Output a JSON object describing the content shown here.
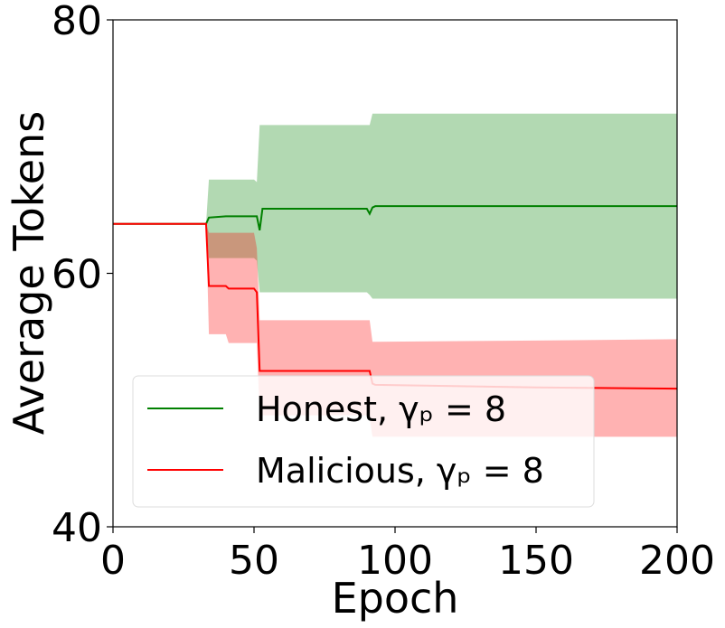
{
  "chart_data": {
    "type": "line",
    "xlabel": "Epoch",
    "ylabel": "Average Tokens",
    "x": [
      0,
      33,
      34,
      40,
      41,
      50,
      51,
      52,
      53,
      90,
      91,
      92,
      93,
      150,
      200
    ],
    "series": [
      {
        "name": "Honest, γₚ = 8",
        "color": "#008000",
        "values": [
          63.9,
          63.9,
          64.4,
          64.5,
          64.5,
          64.5,
          64.5,
          63.4,
          65.1,
          65.1,
          64.7,
          65.2,
          65.3,
          65.3,
          65.3
        ],
        "upper": [
          63.9,
          63.9,
          67.4,
          67.4,
          67.4,
          67.4,
          67.2,
          71.7,
          71.7,
          71.7,
          71.7,
          72.6,
          72.6,
          72.6,
          72.6
        ],
        "lower": [
          63.9,
          63.9,
          61.2,
          61.2,
          61.2,
          61.2,
          61.0,
          58.5,
          58.5,
          58.5,
          58.3,
          58.0,
          58.0,
          58.0,
          58.0
        ]
      },
      {
        "name": "Malicious, γₚ = 8",
        "color": "#ff0000",
        "values": [
          63.9,
          63.9,
          59.0,
          59.0,
          58.8,
          58.8,
          58.5,
          52.3,
          52.3,
          52.3,
          52.3,
          51.3,
          51.2,
          51.0,
          50.9
        ],
        "upper": [
          63.9,
          63.9,
          63.2,
          63.2,
          63.2,
          63.2,
          62.0,
          56.3,
          56.3,
          56.3,
          56.3,
          54.6,
          54.6,
          54.7,
          54.8
        ],
        "lower": [
          63.9,
          63.9,
          55.2,
          55.2,
          54.5,
          54.5,
          54.5,
          48.8,
          48.8,
          48.8,
          48.6,
          47.1,
          47.1,
          47.1,
          47.1
        ]
      }
    ],
    "xlim": [
      0,
      200
    ],
    "xticks": [
      0,
      50,
      100,
      150,
      200
    ],
    "ylim": [
      40,
      80
    ],
    "yticks": [
      40,
      60,
      80
    ],
    "legend": "lower left"
  }
}
